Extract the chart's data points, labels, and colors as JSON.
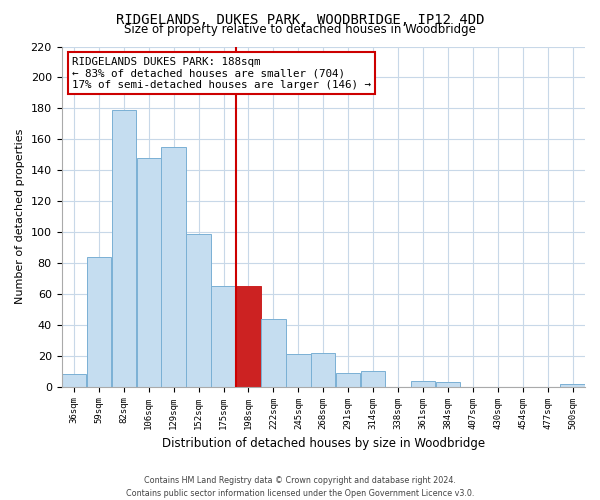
{
  "title": "RIDGELANDS, DUKES PARK, WOODBRIDGE, IP12 4DD",
  "subtitle": "Size of property relative to detached houses in Woodbridge",
  "xlabel": "Distribution of detached houses by size in Woodbridge",
  "ylabel": "Number of detached properties",
  "bin_labels": [
    "36sqm",
    "59sqm",
    "82sqm",
    "106sqm",
    "129sqm",
    "152sqm",
    "175sqm",
    "198sqm",
    "222sqm",
    "245sqm",
    "268sqm",
    "291sqm",
    "314sqm",
    "338sqm",
    "361sqm",
    "384sqm",
    "407sqm",
    "430sqm",
    "454sqm",
    "477sqm",
    "500sqm"
  ],
  "bar_values": [
    8,
    84,
    179,
    148,
    155,
    99,
    65,
    65,
    44,
    21,
    22,
    9,
    10,
    0,
    4,
    3,
    0,
    0,
    0,
    0,
    2
  ],
  "bar_color": "#c5ddf0",
  "bar_edge_color": "#7ab0d4",
  "highlight_bar_index": 7,
  "highlight_bar_color": "#cc2222",
  "highlight_line_color": "#cc0000",
  "annotation_line1": "RIDGELANDS DUKES PARK: 188sqm",
  "annotation_line2": "← 83% of detached houses are smaller (704)",
  "annotation_line3": "17% of semi-detached houses are larger (146) →",
  "annotation_box_color": "#ffffff",
  "annotation_box_edge": "#cc0000",
  "ylim": [
    0,
    220
  ],
  "yticks": [
    0,
    20,
    40,
    60,
    80,
    100,
    120,
    140,
    160,
    180,
    200,
    220
  ],
  "footer_line1": "Contains HM Land Registry data © Crown copyright and database right 2024.",
  "footer_line2": "Contains public sector information licensed under the Open Government Licence v3.0.",
  "background_color": "#ffffff",
  "grid_color": "#c8d8e8"
}
